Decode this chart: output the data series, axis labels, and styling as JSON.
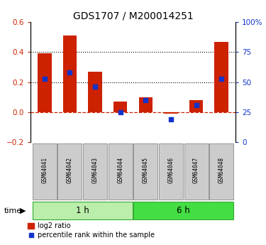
{
  "title": "GDS1707 / M200014251",
  "categories": [
    "GSM64041",
    "GSM64042",
    "GSM64043",
    "GSM64044",
    "GSM64045",
    "GSM64046",
    "GSM64047",
    "GSM64048"
  ],
  "log2_ratio": [
    0.39,
    0.51,
    0.27,
    0.07,
    0.1,
    -0.01,
    0.08,
    0.47
  ],
  "percentile_rank": [
    53,
    58,
    46,
    25,
    35,
    19,
    31,
    53
  ],
  "bar_color": "#cc2200",
  "dot_color": "#1133cc",
  "left_ylim": [
    -0.2,
    0.6
  ],
  "right_ylim": [
    0,
    100
  ],
  "left_yticks": [
    -0.2,
    0.0,
    0.2,
    0.4,
    0.6
  ],
  "right_yticks": [
    0,
    25,
    50,
    75,
    100
  ],
  "right_yticklabels": [
    "0",
    "25",
    "50",
    "75",
    "100%"
  ],
  "dotted_lines": [
    0.2,
    0.4
  ],
  "groups": [
    {
      "label": "1 h",
      "indices": [
        0,
        1,
        2,
        3
      ],
      "color": "#bbeeaa"
    },
    {
      "label": "6 h",
      "indices": [
        4,
        5,
        6,
        7
      ],
      "color": "#44dd44"
    }
  ],
  "time_label": "time",
  "legend_bar_label": "log2 ratio",
  "legend_dot_label": "percentile rank within the sample",
  "bg_color": "#ffffff",
  "zero_line_color": "#cc2200",
  "sample_box_color": "#cccccc",
  "sample_box_edge": "#888888"
}
